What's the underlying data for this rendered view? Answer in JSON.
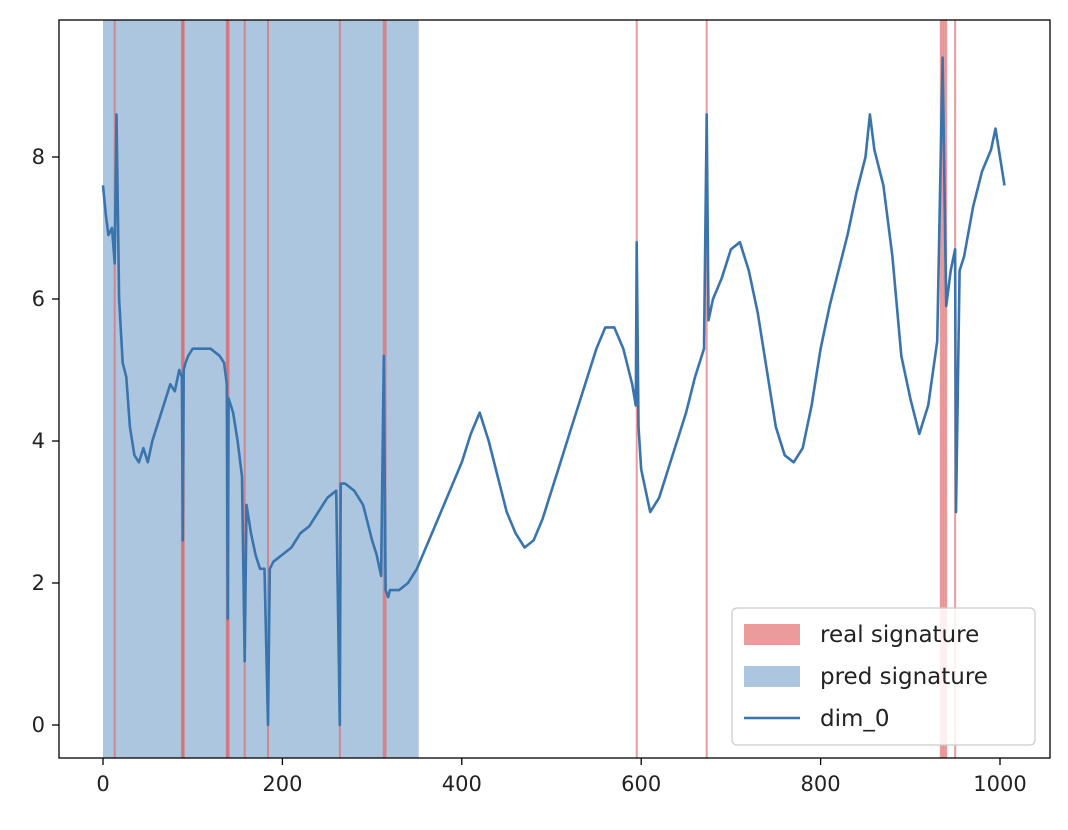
{
  "chart_data": {
    "type": "line",
    "title": "",
    "xlabel": "",
    "ylabel": "",
    "xlim": [
      -48,
      1053
    ],
    "ylim": [
      -0.45,
      9.9
    ],
    "x_ticks": [
      0,
      200,
      400,
      600,
      800,
      1000
    ],
    "y_ticks": [
      0,
      2,
      4,
      6,
      8
    ],
    "grid": false,
    "legend_position": "lower-right",
    "legend": [
      {
        "label": "real signature",
        "kind": "patch",
        "color": "#e06666"
      },
      {
        "label": "pred signature",
        "kind": "patch",
        "color": "#7ba3cd"
      },
      {
        "label": "dim_0",
        "kind": "line",
        "color": "#3a74ad"
      }
    ],
    "pred_signature_spans": [
      [
        0,
        352
      ]
    ],
    "real_signature_x": [
      13,
      88,
      89,
      90,
      138,
      139,
      140,
      158,
      184,
      264,
      313,
      315,
      595,
      673,
      934,
      936,
      938,
      940,
      950
    ],
    "series": [
      {
        "name": "dim_0",
        "color": "#3a74ad",
        "x": [
          0,
          3,
          6,
          10,
          13,
          15,
          18,
          22,
          26,
          30,
          35,
          40,
          45,
          50,
          55,
          60,
          65,
          70,
          75,
          80,
          85,
          88,
          89,
          90,
          92,
          95,
          100,
          110,
          120,
          130,
          135,
          138,
          139,
          140,
          145,
          150,
          155,
          158,
          160,
          165,
          170,
          175,
          180,
          184,
          186,
          190,
          200,
          210,
          220,
          230,
          240,
          250,
          260,
          264,
          265,
          270,
          280,
          290,
          300,
          305,
          310,
          313,
          315,
          318,
          320,
          330,
          340,
          350,
          360,
          370,
          380,
          390,
          400,
          410,
          420,
          430,
          440,
          450,
          460,
          470,
          480,
          490,
          500,
          510,
          520,
          530,
          540,
          550,
          560,
          570,
          580,
          590,
          594,
          595,
          597,
          600,
          610,
          620,
          630,
          640,
          650,
          660,
          670,
          673,
          675,
          680,
          690,
          700,
          710,
          720,
          730,
          740,
          750,
          760,
          770,
          780,
          790,
          800,
          810,
          820,
          830,
          840,
          850,
          855,
          860,
          870,
          880,
          890,
          900,
          910,
          920,
          930,
          936,
          940,
          945,
          950,
          951,
          955,
          960,
          970,
          980,
          990,
          995,
          1000,
          1005
        ],
        "y": [
          7.6,
          7.2,
          6.9,
          7.0,
          6.5,
          8.6,
          6.0,
          5.1,
          4.9,
          4.2,
          3.8,
          3.7,
          3.9,
          3.7,
          4.0,
          4.2,
          4.4,
          4.6,
          4.8,
          4.7,
          5.0,
          4.9,
          2.6,
          5.0,
          5.1,
          5.2,
          5.3,
          5.3,
          5.3,
          5.2,
          5.1,
          4.8,
          1.5,
          4.6,
          4.4,
          4.0,
          3.5,
          0.9,
          3.1,
          2.7,
          2.4,
          2.2,
          2.2,
          0.0,
          2.2,
          2.3,
          2.4,
          2.5,
          2.7,
          2.8,
          3.0,
          3.2,
          3.3,
          0.0,
          3.4,
          3.4,
          3.3,
          3.1,
          2.6,
          2.4,
          2.1,
          5.2,
          1.9,
          1.8,
          1.9,
          1.9,
          2.0,
          2.2,
          2.5,
          2.8,
          3.1,
          3.4,
          3.7,
          4.1,
          4.4,
          4.0,
          3.5,
          3.0,
          2.7,
          2.5,
          2.6,
          2.9,
          3.3,
          3.7,
          4.1,
          4.5,
          4.9,
          5.3,
          5.6,
          5.6,
          5.3,
          4.8,
          4.5,
          6.8,
          4.2,
          3.6,
          3.0,
          3.2,
          3.6,
          4.0,
          4.4,
          4.9,
          5.3,
          8.6,
          5.7,
          6.0,
          6.3,
          6.7,
          6.8,
          6.4,
          5.8,
          5.0,
          4.2,
          3.8,
          3.7,
          3.9,
          4.5,
          5.3,
          5.9,
          6.4,
          6.9,
          7.5,
          8.0,
          8.6,
          8.1,
          7.6,
          6.6,
          5.2,
          4.6,
          4.1,
          4.5,
          5.4,
          9.4,
          5.9,
          6.4,
          6.7,
          3.0,
          6.4,
          6.6,
          7.3,
          7.8,
          8.1,
          8.4,
          8.0,
          7.6
        ]
      }
    ]
  }
}
